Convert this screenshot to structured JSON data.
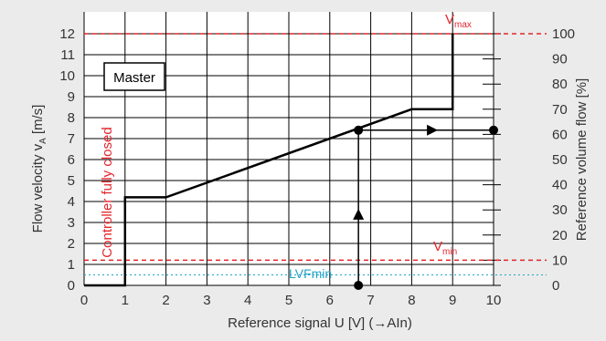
{
  "chart_data": {
    "type": "line",
    "xlabel": "Reference signal U [V] (→AIn)",
    "ylabel_main": "Flow velocity v",
    "ylabel_sub": "A",
    "ylabel_unit": "[m/s]",
    "y2label": "Reference volume flow [%]",
    "xlim": [
      0,
      10
    ],
    "ylim": [
      0,
      12
    ],
    "y2lim": [
      0,
      100
    ],
    "x_ticks": [
      "0",
      "1",
      "2",
      "3",
      "4",
      "5",
      "6",
      "7",
      "8",
      "9",
      "10"
    ],
    "y_ticks": [
      "0",
      "1",
      "2",
      "3",
      "4",
      "5",
      "6",
      "7",
      "8",
      "9",
      "10",
      "11",
      "12"
    ],
    "y2_ticks": [
      "0",
      "10",
      "20",
      "30",
      "40",
      "50",
      "60",
      "70",
      "80",
      "90",
      "100"
    ],
    "grid": true,
    "series": [
      {
        "x": [
          0,
          1,
          1,
          2,
          8,
          9,
          9
        ],
        "y": [
          0,
          0,
          4.2,
          4.2,
          8.4,
          8.4,
          12
        ]
      }
    ],
    "reference_lines": {
      "vmax": {
        "value": 12,
        "label_main": "V",
        "label_sub": "max",
        "color": "#e3242b"
      },
      "vmin": {
        "value": 1.2,
        "label_main": "V",
        "label_sub": "min",
        "color": "#e3242b"
      },
      "lvfmin": {
        "value": 0.5,
        "label": "LVFmin",
        "color": "#1fa3c6"
      }
    },
    "annotations": {
      "master_label": "Master",
      "controller_closed_label": "Controller fully closed",
      "example_x": 6.7,
      "example_y": 7.4
    },
    "colors": {
      "curve": "#000000",
      "grid": "#000000",
      "band": "#ebebeb",
      "red": "#e3242b",
      "cyan": "#1fa3c6"
    }
  }
}
